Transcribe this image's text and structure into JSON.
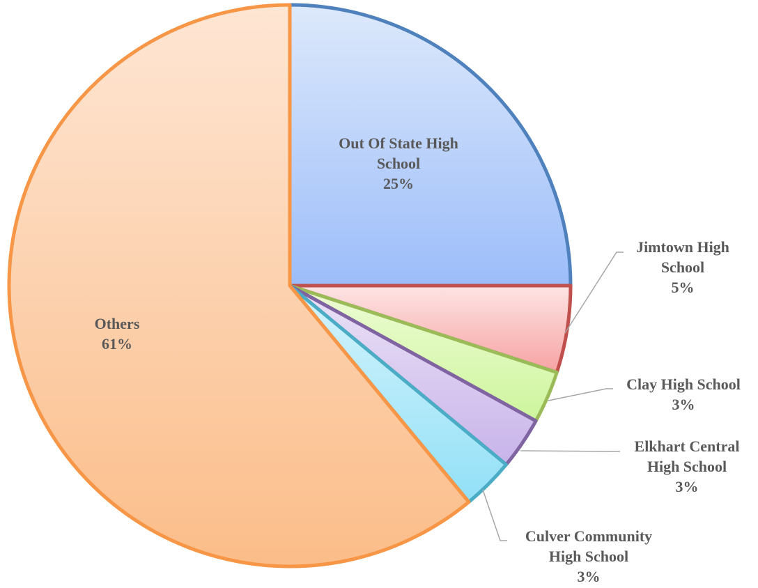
{
  "chart_data": {
    "type": "pie",
    "title": "",
    "slices": [
      {
        "label": "Out Of State High School",
        "value": 25,
        "percent_label": "25%",
        "colors": {
          "light": "#dde9fb",
          "dark": "#9cbdfa",
          "stroke": "#4f81bd"
        }
      },
      {
        "label": "Jimtown High School",
        "value": 5,
        "percent_label": "5%",
        "colors": {
          "light": "#fde4e4",
          "dark": "#f7a3a3",
          "stroke": "#c0504d"
        }
      },
      {
        "label": "Clay High School",
        "value": 3,
        "percent_label": "3%",
        "colors": {
          "light": "#eefcd6",
          "dark": "#cdf59c",
          "stroke": "#9bbb59"
        }
      },
      {
        "label": "Elkhart Central High School",
        "value": 3,
        "percent_label": "3%",
        "colors": {
          "light": "#ebe3f6",
          "dark": "#c8b3ea",
          "stroke": "#8064a2"
        }
      },
      {
        "label": "Culver Community High School",
        "value": 3,
        "percent_label": "3%",
        "colors": {
          "light": "#d6f4fc",
          "dark": "#92e0f7",
          "stroke": "#4bacc6"
        }
      },
      {
        "label": "Others",
        "value": 61,
        "percent_label": "61%",
        "colors": {
          "light": "#fee6d4",
          "dark": "#fbbd89",
          "stroke": "#f79646"
        }
      }
    ]
  }
}
